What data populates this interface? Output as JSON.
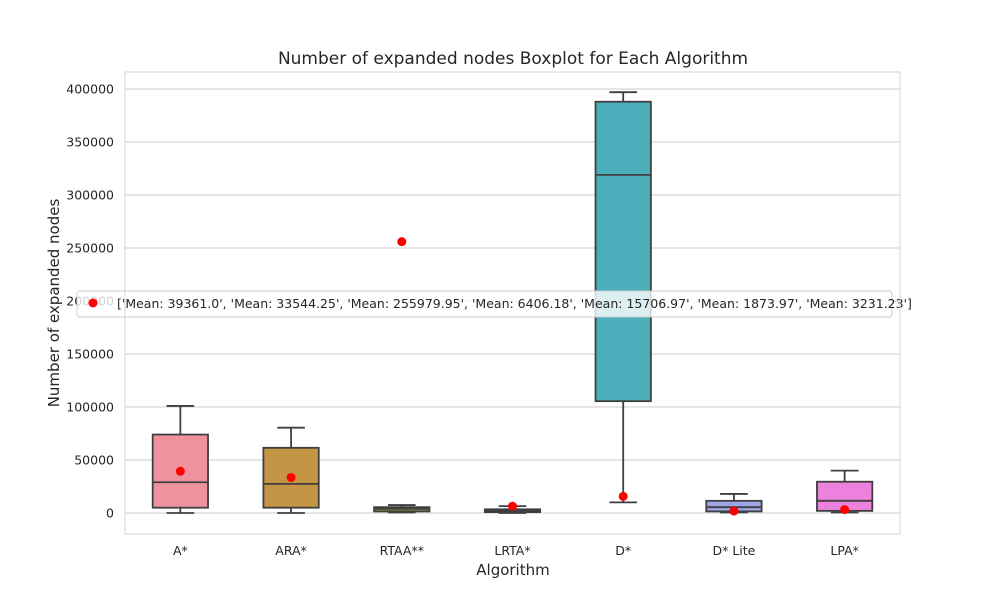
{
  "chart_data": {
    "type": "box",
    "title": "Number of expanded nodes Boxplot for Each Algorithm",
    "xlabel": "Algorithm",
    "ylabel": "Number of expanded nodes",
    "ylim": [
      -20000,
      417000
    ],
    "yticks": [
      0,
      50000,
      100000,
      150000,
      200000,
      250000,
      300000,
      350000,
      400000
    ],
    "grid": "horizontal",
    "categories": [
      "A*",
      "ARA*",
      "RTAA**",
      "LRTA*",
      "D*",
      "D* Lite",
      "LPA*"
    ],
    "boxes": [
      {
        "category": "A*",
        "whisker_low": 0,
        "q1": 5000,
        "median": 29000,
        "q3": 74000,
        "whisker_high": 101000,
        "color": "#ee929e"
      },
      {
        "category": "ARA*",
        "whisker_low": 0,
        "q1": 5000,
        "median": 27500,
        "q3": 61500,
        "whisker_high": 80500,
        "color": "#c39545"
      },
      {
        "category": "RTAA**",
        "whisker_low": 500,
        "q1": 1500,
        "median": 4000,
        "q3": 5500,
        "whisker_high": 7500,
        "color": "#8c8f3e"
      },
      {
        "category": "LRTA*",
        "whisker_low": 0,
        "q1": 800,
        "median": 2000,
        "q3": 3500,
        "whisker_high": 6500,
        "color": "#4ca07b"
      },
      {
        "category": "D*",
        "whisker_low": 10000,
        "q1": 105500,
        "median": 319000,
        "q3": 388000,
        "whisker_high": 397000,
        "color": "#4aadba"
      },
      {
        "category": "D* Lite",
        "whisker_low": 500,
        "q1": 1500,
        "median": 5500,
        "q3": 11500,
        "whisker_high": 18000,
        "color": "#9ea5e6"
      },
      {
        "category": "LPA*",
        "whisker_low": 500,
        "q1": 2000,
        "median": 11500,
        "q3": 29500,
        "whisker_high": 40000,
        "color": "#ec82dd"
      }
    ],
    "means": [
      39361.0,
      33544.25,
      255979.95,
      6406.18,
      15706.97,
      1873.97,
      3231.23
    ],
    "mean_color": "#ff0000",
    "legend": {
      "placement": "center-left",
      "label": "['Mean: 39361.0', 'Mean: 33544.25', 'Mean: 255979.95', 'Mean: 6406.18', 'Mean: 15706.97', 'Mean: 1873.97', 'Mean: 3231.23']"
    }
  }
}
